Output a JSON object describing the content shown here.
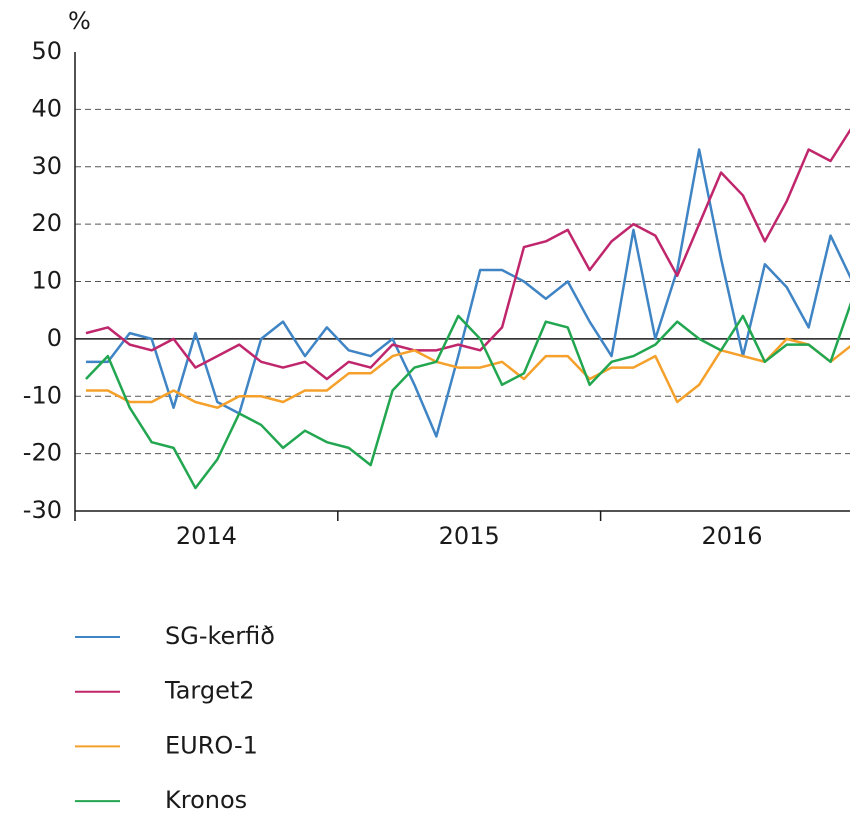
{
  "chart_data": {
    "type": "line",
    "y_unit": "%",
    "categories": [
      null,
      null,
      null,
      null,
      null,
      null,
      null,
      null,
      null,
      null,
      null,
      null,
      null,
      null,
      null,
      null,
      null,
      null,
      null,
      null,
      null,
      null,
      null,
      null,
      null,
      null,
      null,
      null,
      null,
      null,
      null,
      null,
      null,
      null,
      null,
      null
    ],
    "x_groups": [
      "2014",
      "2015",
      "2016"
    ],
    "series": [
      {
        "name": "SG-kerfið",
        "color": "#3f84c4",
        "values": [
          -4,
          -4,
          1,
          0,
          -12,
          1,
          -11,
          -13,
          0,
          3,
          -3,
          2,
          -2,
          -3,
          0,
          -8,
          -17,
          -3,
          12,
          12,
          10,
          7,
          10,
          3,
          -3,
          19,
          0,
          12,
          33,
          14,
          -3,
          13,
          9,
          2,
          18,
          10
        ]
      },
      {
        "name": "Target2",
        "color": "#c0266c",
        "values": [
          1,
          2,
          -1,
          -2,
          0,
          -5,
          -3,
          -1,
          -4,
          -5,
          -4,
          -7,
          -4,
          -5,
          -1,
          -2,
          -2,
          -1,
          -2,
          2,
          16,
          17,
          19,
          12,
          17,
          20,
          18,
          11,
          20,
          29,
          25,
          17,
          24,
          33,
          31,
          37
        ]
      },
      {
        "name": "EURO-1",
        "color": "#f5a02a",
        "values": [
          -9,
          -9,
          -11,
          -11,
          -9,
          -11,
          -12,
          -10,
          -10,
          -11,
          -9,
          -9,
          -6,
          -6,
          -3,
          -2,
          -4,
          -5,
          -5,
          -4,
          -7,
          -3,
          -3,
          -7,
          -5,
          -5,
          -3,
          -11,
          -8,
          -2,
          -3,
          -4,
          0,
          -1,
          -4,
          -1
        ]
      },
      {
        "name": "Kronos",
        "color": "#22a650",
        "values": [
          -7,
          -3,
          -12,
          -18,
          -19,
          -26,
          -21,
          -13,
          -15,
          -19,
          -16,
          -18,
          -19,
          -22,
          -9,
          -5,
          -4,
          4,
          0,
          -8,
          -6,
          3,
          2,
          -8,
          -4,
          -3,
          -1,
          3,
          0,
          -2,
          4,
          -4,
          -1,
          -1,
          -4,
          7
        ]
      }
    ],
    "ylim": [
      -30,
      50
    ],
    "yticks": [
      -30,
      -20,
      -10,
      0,
      10,
      20,
      30,
      40,
      50
    ],
    "grid": true
  }
}
